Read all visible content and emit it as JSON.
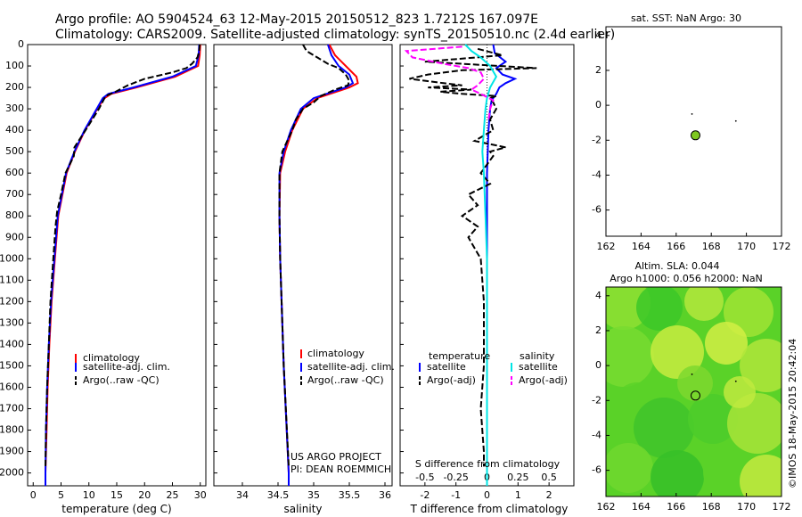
{
  "header": {
    "line1": "Argo profile: AO 5904524_63 12-May-2015 20150512_823 1.7212S 167.097E",
    "line2": "Climatology: CARS2009. Satellite-adjusted climatology: synTS_20150510.nc (2.4d earlier)"
  },
  "colors": {
    "climatology": "#ff0000",
    "satellite": "#0000ff",
    "argo": "#000000",
    "sal_satellite": "#00e5e5",
    "sal_argo": "#ff00ff",
    "argo_marker": "#7ec820"
  },
  "depth_ticks": [
    0,
    100,
    200,
    300,
    400,
    500,
    600,
    700,
    800,
    900,
    1000,
    1100,
    1200,
    1300,
    1400,
    1500,
    1600,
    1700,
    1800,
    1900,
    2000
  ],
  "chart_data": [
    {
      "type": "line",
      "panel": "temperature",
      "xlabel": "temperature (deg C)",
      "xlim": [
        -1,
        31
      ],
      "ylim": [
        2060,
        0
      ],
      "xticks": [
        0,
        5,
        10,
        15,
        20,
        25,
        30
      ],
      "legend": [
        "climatology",
        "satellite-adj. clim.",
        "Argo(..raw -QC)"
      ],
      "series": [
        {
          "name": "climatology",
          "color": "#ff0000",
          "style": "solid",
          "depth": [
            0,
            50,
            100,
            150,
            200,
            230,
            250,
            300,
            400,
            500,
            600,
            800,
            1000,
            1200,
            1400,
            1600,
            1800,
            2000,
            2060
          ],
          "value": [
            30,
            29.9,
            29.6,
            25.5,
            18.5,
            14.0,
            12.8,
            11.5,
            9.3,
            7.5,
            6.0,
            4.5,
            3.9,
            3.3,
            2.9,
            2.6,
            2.4,
            2.2,
            2.2
          ]
        },
        {
          "name": "satellite-adj. clim.",
          "color": "#0000ff",
          "style": "solid",
          "depth": [
            0,
            50,
            100,
            150,
            200,
            230,
            250,
            300,
            400,
            500,
            600,
            800,
            1000,
            1200,
            1400,
            1600,
            1800,
            2000,
            2060
          ],
          "value": [
            29.8,
            29.7,
            29.2,
            25.0,
            18.0,
            13.5,
            12.5,
            11.4,
            9.2,
            7.4,
            5.9,
            4.4,
            3.8,
            3.2,
            2.8,
            2.5,
            2.3,
            2.2,
            2.2
          ]
        },
        {
          "name": "Argo(..raw -QC)",
          "color": "#000000",
          "style": "dash",
          "depth": [
            0,
            30,
            60,
            90,
            110,
            130,
            160,
            190,
            220,
            240,
            260,
            300,
            350,
            400,
            480,
            520,
            600,
            700,
            780,
            850,
            1000,
            1200,
            1400,
            1600,
            1800,
            1970
          ],
          "value": [
            29.9,
            29.8,
            29.5,
            28.5,
            27.5,
            25.0,
            20.0,
            17.0,
            14.8,
            13.0,
            12.6,
            11.8,
            10.6,
            9.4,
            7.4,
            7.3,
            5.8,
            5.0,
            4.3,
            4.0,
            3.6,
            3.1,
            2.8,
            2.5,
            2.3,
            2.2
          ]
        }
      ]
    },
    {
      "type": "line",
      "panel": "salinity",
      "xlabel": "salinity",
      "xlim": [
        33.6,
        36.1
      ],
      "ylim": [
        2060,
        0
      ],
      "xticks": [
        34,
        34.5,
        35,
        35.5,
        36
      ],
      "legend": [
        "climatology",
        "satellite-adj. clim.",
        "Argo(..raw -QC)"
      ],
      "annotation": [
        "US ARGO PROJECT",
        "PI: DEAN ROEMMICH"
      ],
      "series": [
        {
          "name": "climatology",
          "color": "#ff0000",
          "style": "solid",
          "depth": [
            0,
            50,
            100,
            150,
            180,
            200,
            250,
            300,
            400,
            500,
            600,
            800,
            1000,
            1200,
            1500,
            2000,
            2060
          ],
          "value": [
            35.22,
            35.3,
            35.45,
            35.6,
            35.62,
            35.5,
            35.05,
            34.85,
            34.7,
            34.6,
            34.53,
            34.52,
            34.53,
            34.55,
            34.58,
            34.65,
            34.65
          ]
        },
        {
          "name": "satellite-adj. clim.",
          "color": "#0000ff",
          "style": "solid",
          "depth": [
            0,
            50,
            100,
            140,
            180,
            200,
            250,
            300,
            400,
            500,
            600,
            800,
            1000,
            1200,
            1500,
            2000,
            2060
          ],
          "value": [
            35.2,
            35.25,
            35.35,
            35.5,
            35.55,
            35.45,
            35.0,
            34.82,
            34.68,
            34.58,
            34.52,
            34.52,
            34.53,
            34.55,
            34.58,
            34.65,
            34.65
          ]
        },
        {
          "name": "Argo(..raw -QC)",
          "color": "#000000",
          "style": "dash",
          "depth": [
            0,
            30,
            60,
            90,
            110,
            140,
            170,
            190,
            210,
            240,
            270,
            300,
            350,
            400,
            450,
            500,
            600,
            800,
            1000,
            1200,
            1500,
            1970
          ],
          "value": [
            34.85,
            34.9,
            35.05,
            35.2,
            35.35,
            35.45,
            35.5,
            35.48,
            35.3,
            35.1,
            35.0,
            34.85,
            34.75,
            34.7,
            34.63,
            34.56,
            34.52,
            34.52,
            34.53,
            34.55,
            34.58,
            34.65
          ]
        }
      ]
    },
    {
      "type": "line",
      "panel": "difference",
      "xlabel": "T difference from climatology",
      "xlabel_top": "S difference from climatology",
      "xlim": [
        -2.8,
        2.8
      ],
      "ylim": [
        2060,
        0
      ],
      "xticks_T": [
        -2,
        -1,
        0,
        1,
        2
      ],
      "xticks_S": [
        "-0.5",
        "-0.25",
        "0",
        "0.25",
        "0.5"
      ],
      "legend_temperature": [
        "temperature",
        "satellite",
        "Argo(-adj)"
      ],
      "legend_salinity": [
        "salinity",
        "satellite",
        "Argo(-adj)"
      ],
      "series": [
        {
          "name": "T satellite",
          "color": "#0000ff",
          "style": "solid",
          "depth": [
            0,
            40,
            80,
            110,
            140,
            160,
            180,
            200,
            230,
            260,
            300,
            400,
            600,
            800,
            1000,
            1500,
            2060
          ],
          "value": [
            0.2,
            0.25,
            0.6,
            0.3,
            0.5,
            0.9,
            0.6,
            0.4,
            0.3,
            0.15,
            0.1,
            0.05,
            0.0,
            0.0,
            0.0,
            0.0,
            0.0
          ]
        },
        {
          "name": "T Argo(-adj)",
          "color": "#000000",
          "style": "dash",
          "depth": [
            20,
            50,
            80,
            110,
            120,
            140,
            160,
            180,
            190,
            200,
            210,
            220,
            230,
            240,
            250,
            270,
            300,
            350,
            400,
            450,
            480,
            500,
            520,
            600,
            650,
            700,
            750,
            800,
            850,
            900,
            1000,
            1200,
            1500,
            1700,
            1900,
            1970
          ],
          "value": [
            -0.3,
            0.5,
            -2.0,
            1.6,
            -0.8,
            -1.9,
            -2.5,
            -1.4,
            -0.8,
            -1.9,
            -0.5,
            -1.5,
            -0.8,
            0.3,
            0.1,
            0.2,
            0.3,
            0.1,
            0.2,
            -0.4,
            0.6,
            0.1,
            0.2,
            -0.2,
            0.1,
            -0.6,
            -0.3,
            -0.8,
            -0.3,
            -0.6,
            -0.2,
            -0.1,
            -0.1,
            -0.2,
            -0.1,
            -0.1
          ]
        },
        {
          "name": "S satellite",
          "color": "#00e5e5",
          "style": "solid",
          "depth": [
            0,
            30,
            60,
            100,
            150,
            200,
            250,
            300,
            400,
            500,
            600,
            800,
            1000,
            1500,
            2060
          ],
          "value": [
            -0.7,
            -0.5,
            -0.2,
            0.1,
            0.3,
            0.1,
            0.0,
            -0.05,
            -0.1,
            -0.15,
            -0.1,
            -0.05,
            0.0,
            0.0,
            0.0
          ]
        },
        {
          "name": "S Argo(-adj)",
          "color": "#ff00ff",
          "style": "dash",
          "depth": [
            10,
            30,
            60,
            90,
            110,
            130,
            160,
            190,
            210,
            230,
            260,
            300,
            350
          ],
          "value": [
            -0.8,
            -2.6,
            -2.4,
            -1.4,
            -0.6,
            -0.2,
            -0.1,
            -0.3,
            -0.5,
            -0.2,
            0.2,
            0.1,
            0.05
          ]
        }
      ]
    },
    {
      "type": "scatter",
      "panel": "sat_sst",
      "title": "sat. SST: NaN Argo: 30",
      "xlim": [
        162,
        172
      ],
      "ylim": [
        -7.5,
        4.5
      ],
      "xticks": [
        162,
        164,
        166,
        168,
        170,
        172
      ],
      "yticks": [
        4,
        2,
        0,
        -2,
        -4,
        -6
      ],
      "points": [
        {
          "x": 167.1,
          "y": -1.72,
          "kind": "argo"
        },
        {
          "x": 166.9,
          "y": -0.5,
          "kind": "dot"
        },
        {
          "x": 169.4,
          "y": -0.9,
          "kind": "dot"
        }
      ]
    },
    {
      "type": "heatmap",
      "panel": "altim_sla",
      "title_lines": [
        "Altim. SLA: 0.044",
        "Argo h1000: 0.056 h2000: NaN"
      ],
      "xlim": [
        162,
        172
      ],
      "ylim": [
        -7.5,
        4.5
      ],
      "xticks": [
        162,
        164,
        166,
        168,
        170,
        172
      ],
      "yticks": [
        4,
        2,
        0,
        -2,
        -4,
        -6
      ],
      "points": [
        {
          "x": 167.1,
          "y": -1.72,
          "kind": "argo"
        },
        {
          "x": 166.9,
          "y": -0.5,
          "kind": "dot"
        },
        {
          "x": 169.4,
          "y": -0.9,
          "kind": "dot"
        }
      ]
    }
  ],
  "footer": {
    "credit": "©IMOS 18-May-2015 20:42:04"
  }
}
